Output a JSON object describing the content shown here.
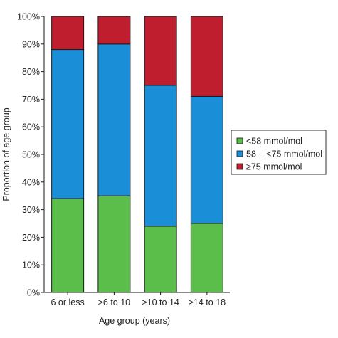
{
  "chart_data": {
    "type": "bar",
    "stacked": true,
    "title": "",
    "xlabel": "Age group (years)",
    "ylabel": "Proportion of age group",
    "categories": [
      "6 or less",
      ">6 to 10",
      ">10 to 14",
      ">14 to 18"
    ],
    "ylim": [
      0,
      100
    ],
    "yticks": [
      0,
      10,
      20,
      30,
      40,
      50,
      60,
      70,
      80,
      90,
      100
    ],
    "ytick_labels": [
      "0%",
      "10%",
      "20%",
      "30%",
      "40%",
      "50%",
      "60%",
      "70%",
      "80%",
      "90%",
      "100%"
    ],
    "grid": false,
    "legend_position": "right",
    "series": [
      {
        "name": "<58 mmol/mol",
        "color": "#5bbd4a",
        "values": [
          34,
          35,
          24,
          25
        ]
      },
      {
        "name": "58 − <75 mmol/mol",
        "color": "#1a8fd7",
        "values": [
          54,
          55,
          51,
          46
        ]
      },
      {
        "name": "≥75 mmol/mol",
        "color": "#be1e2d",
        "values": [
          12,
          10,
          25,
          29
        ]
      }
    ]
  }
}
